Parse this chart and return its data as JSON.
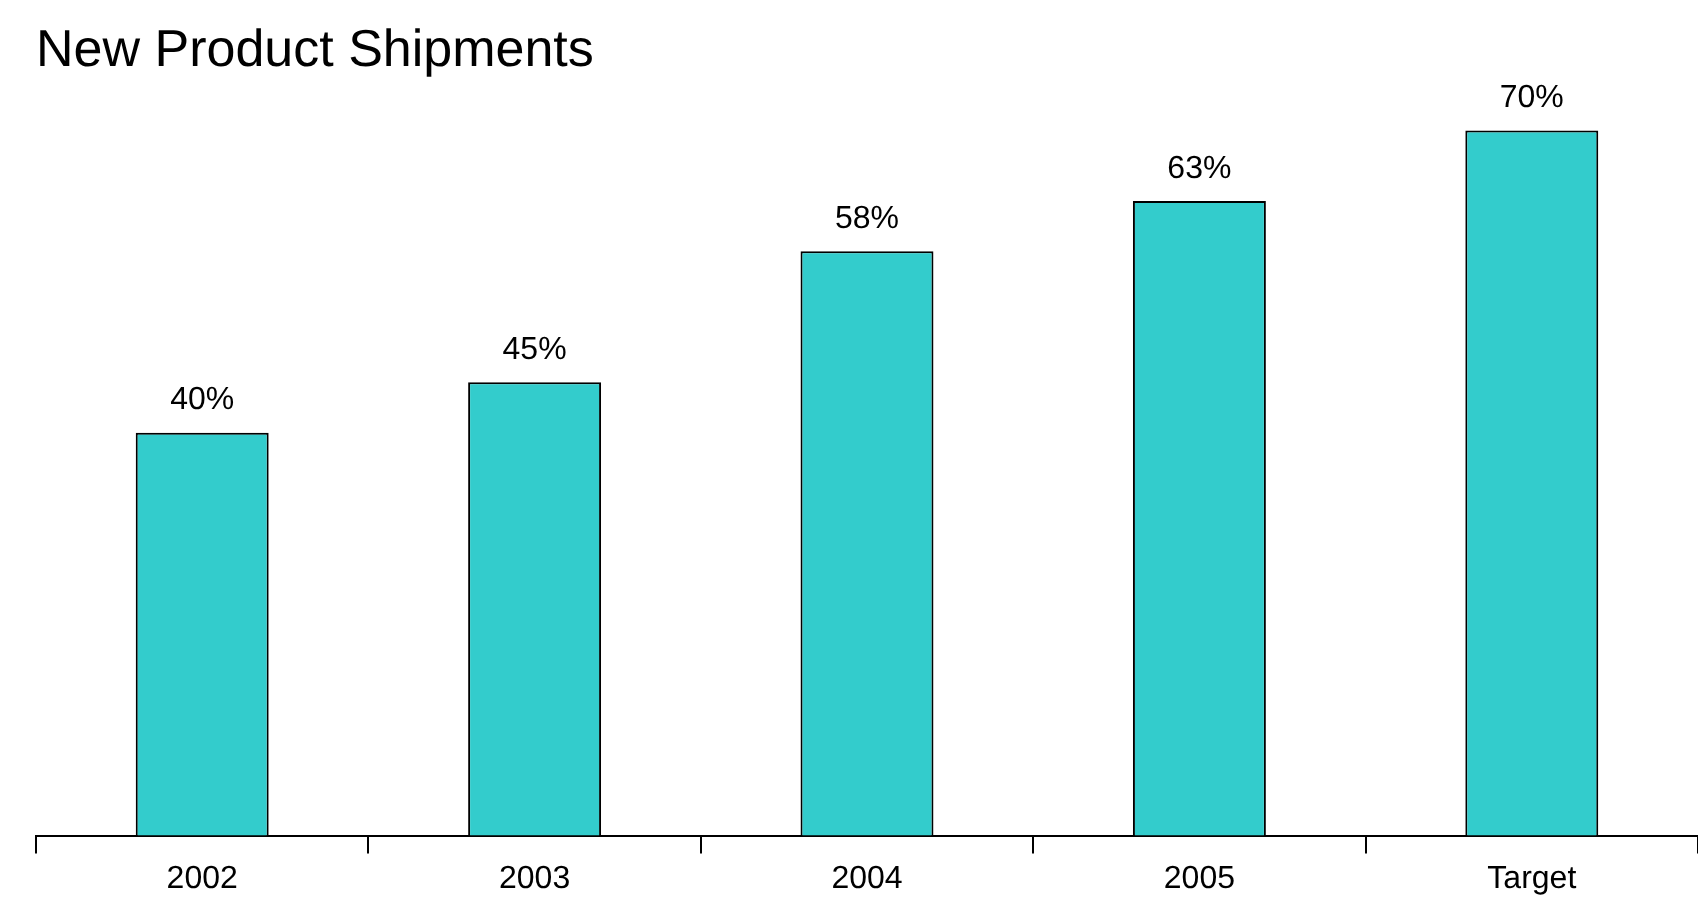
{
  "chart_data": {
    "type": "bar",
    "title": "New Product Shipments",
    "categories": [
      "2002",
      "2003",
      "2004",
      "2005",
      "Target"
    ],
    "values": [
      40,
      45,
      58,
      63,
      70
    ],
    "value_labels": [
      "40%",
      "45%",
      "58%",
      "63%",
      "70%"
    ],
    "color": "#33cccc",
    "grid": false,
    "legend": false
  }
}
